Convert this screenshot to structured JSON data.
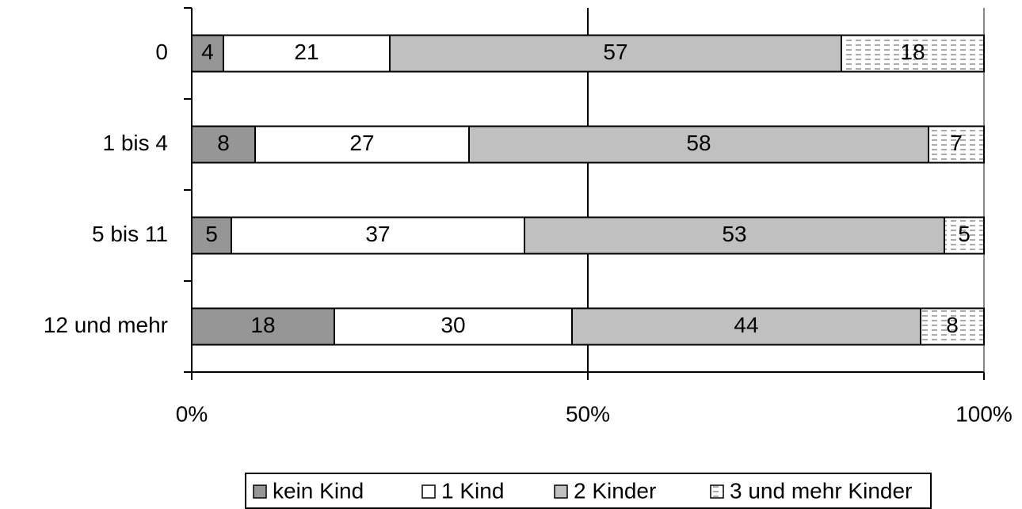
{
  "chart_data": {
    "type": "stacked-barh",
    "categories": [
      "0",
      "1 bis 4",
      "5 bis 11",
      "12 und mehr"
    ],
    "series": [
      {
        "name": "kein Kind",
        "color": "#969696",
        "values": [
          4,
          8,
          5,
          18
        ]
      },
      {
        "name": "1 Kind",
        "color": "#ffffff",
        "values": [
          21,
          27,
          37,
          30
        ]
      },
      {
        "name": "2 Kinder",
        "color": "#c0c0c0",
        "values": [
          57,
          58,
          53,
          44
        ]
      },
      {
        "name": "3 und mehr Kinder",
        "color": "#ffffff",
        "hatch": "dashes",
        "values": [
          18,
          7,
          5,
          8
        ]
      }
    ],
    "xlim": [
      0,
      100
    ],
    "xticks": [
      {
        "value": 0,
        "label": "0%"
      },
      {
        "value": 50,
        "label": "50%"
      },
      {
        "value": 100,
        "label": "100%"
      }
    ],
    "grid": true,
    "legend": "bottom"
  }
}
